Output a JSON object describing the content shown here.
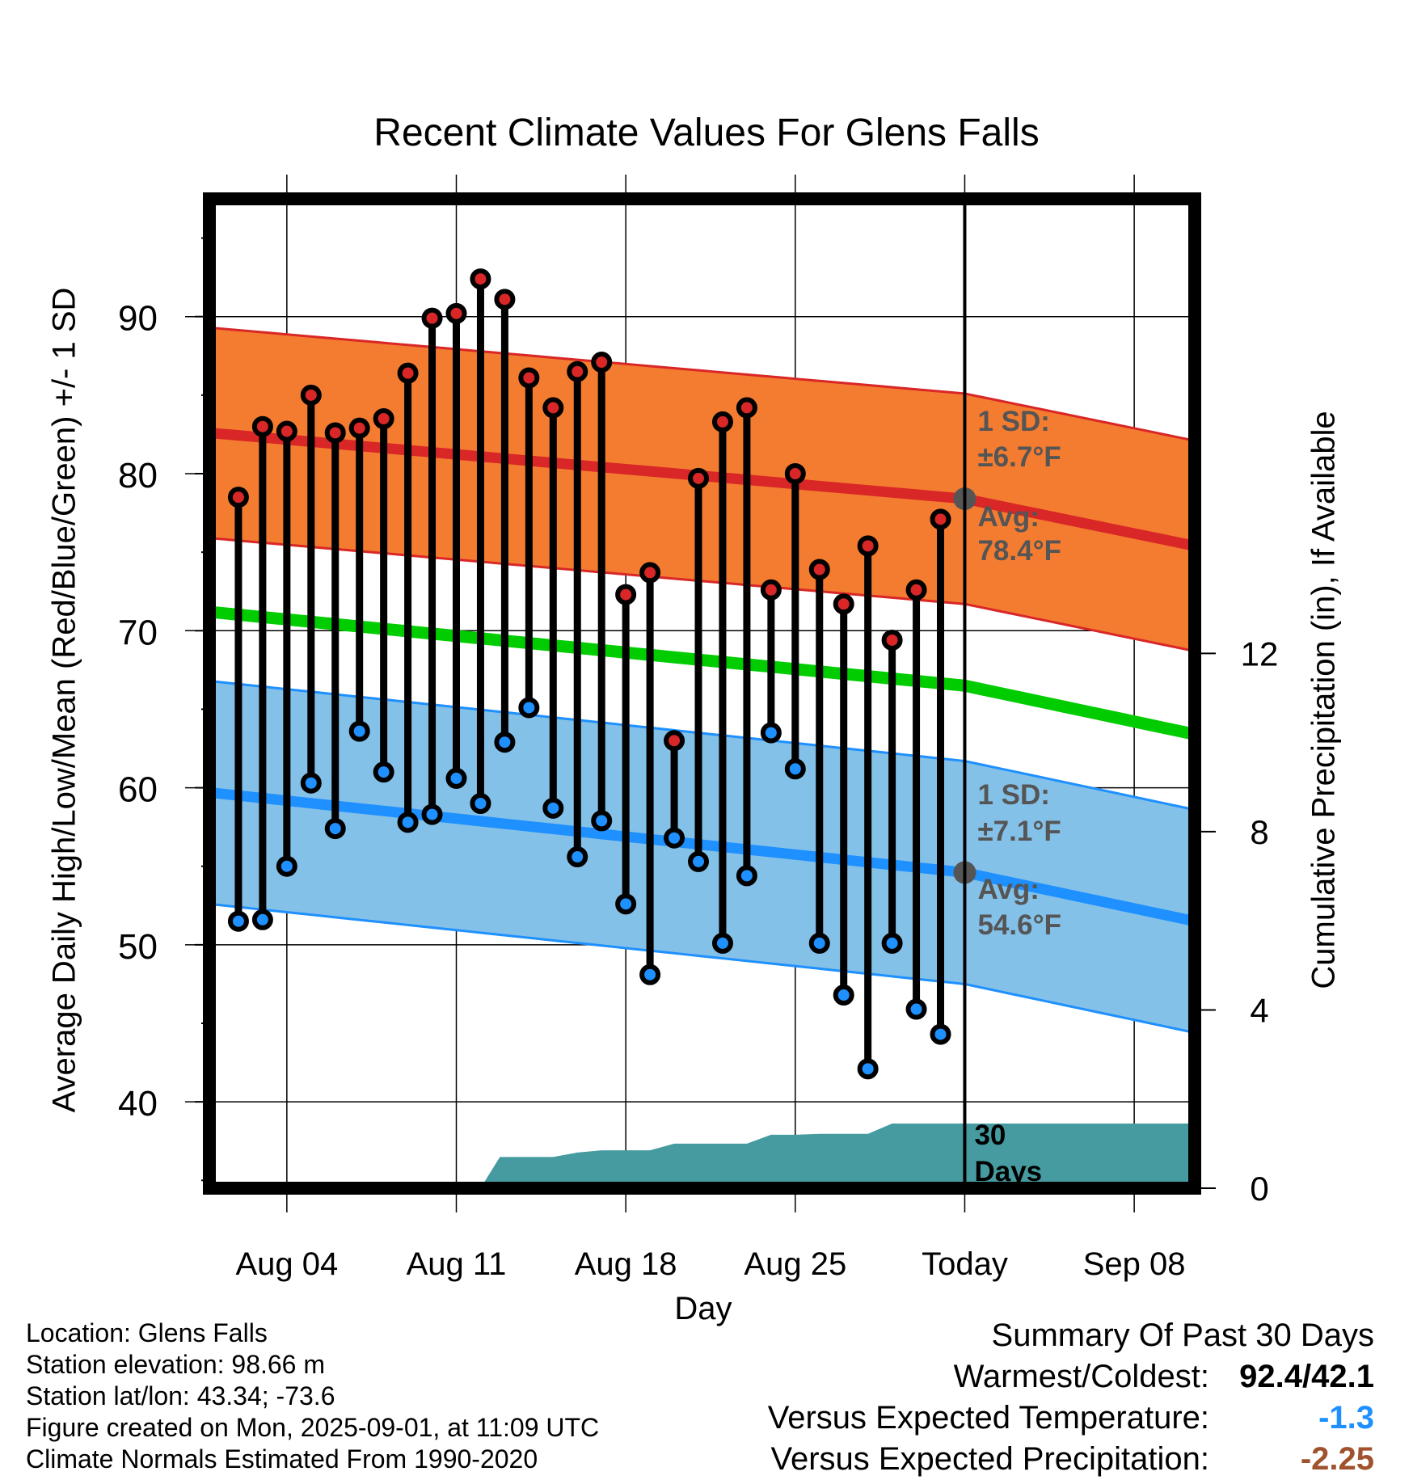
{
  "chart_data": {
    "type": "line",
    "title": "Recent Climate Values For Glens Falls",
    "xlabel": "Day",
    "ylabel": "Average Daily High/Low/Mean (Red/Blue/Green) +/- 1 SD",
    "y2label": "Cumulative Precipitation (in), If Available",
    "x_tick_labels": [
      "Aug 04",
      "Aug 11",
      "Aug 18",
      "Aug 25",
      "Today",
      "Sep 08"
    ],
    "x_tick_days": [
      4,
      11,
      18,
      25,
      32,
      39
    ],
    "y_ticks": [
      40,
      50,
      60,
      70,
      80,
      90
    ],
    "ylim": [
      34.5,
      97.5
    ],
    "y2_ticks": [
      0,
      4,
      8,
      12
    ],
    "y2lim": [
      0,
      22.2
    ],
    "xlim": [
      0.8,
      41.5
    ],
    "today_day": 32,
    "grid": true,
    "observed": {
      "days": [
        2,
        3,
        4,
        5,
        6,
        7,
        8,
        9,
        10,
        11,
        12,
        13,
        14,
        15,
        16,
        17,
        18,
        19,
        20,
        21,
        22,
        23,
        24,
        25,
        26,
        27,
        28,
        29,
        30,
        31
      ],
      "high": [
        78.5,
        83.0,
        82.7,
        85.0,
        82.6,
        82.9,
        83.5,
        86.4,
        89.9,
        90.2,
        92.4,
        91.1,
        86.1,
        84.2,
        86.5,
        87.1,
        72.3,
        73.7,
        63.0,
        79.7,
        83.3,
        84.2,
        72.6,
        80.0,
        73.9,
        71.7,
        75.4,
        69.4,
        72.6,
        77.1
      ],
      "low": [
        51.5,
        51.6,
        55.0,
        60.3,
        57.4,
        63.6,
        61.0,
        57.8,
        58.3,
        60.6,
        59.0,
        62.9,
        65.1,
        58.7,
        55.6,
        57.9,
        52.6,
        48.1,
        56.8,
        55.3,
        50.1,
        54.4,
        63.5,
        61.2,
        50.1,
        46.8,
        42.1,
        50.1,
        45.9,
        44.3
      ]
    },
    "normals": {
      "days": [
        0.8,
        32,
        41.5
      ],
      "high_avg": [
        82.6,
        78.4,
        75.4
      ],
      "high_sd": 6.7,
      "low_avg": [
        59.7,
        54.6,
        51.5
      ],
      "low_sd": 7.1,
      "mean_avg": [
        71.2,
        66.5,
        63.4
      ]
    },
    "precipitation": {
      "days": [
        12.0,
        12.8,
        14.0,
        15.0,
        16.0,
        17.0,
        18.0,
        19.0,
        20.0,
        21.0,
        22.0,
        23.0,
        24.0,
        25.0,
        26.0,
        27.0,
        28.0,
        29.0,
        30.0,
        31.0,
        32.0,
        41.5
      ],
      "cumulative_in": [
        0.0,
        0.7,
        0.7,
        0.7,
        0.8,
        0.85,
        0.85,
        0.85,
        1.0,
        1.0,
        1.0,
        1.0,
        1.2,
        1.2,
        1.22,
        1.22,
        1.22,
        1.45,
        1.45,
        1.45,
        1.45,
        1.45
      ]
    },
    "annotations": {
      "high_sd_label": "1 SD:",
      "high_sd_value": "±6.7°F",
      "high_avg_label": "Avg:",
      "high_avg_value": "78.4°F",
      "low_sd_label": "1 SD:",
      "low_sd_value": "±7.1°F",
      "low_avg_label": "Avg:",
      "low_avg_value": "54.6°F",
      "days_count": "30",
      "days_word": "Days"
    },
    "colors": {
      "high_band": "#f47c30",
      "high_line": "#d92626",
      "low_band": "#84c1e8",
      "low_line": "#1e90ff",
      "mean_line": "#00cc00",
      "precip": "#469ba0",
      "high_dot": "#d92626",
      "low_dot": "#1e90ff",
      "annotation_text": "#555555"
    }
  },
  "station": {
    "location": "Location: Glens Falls",
    "elevation": "Station elevation: 98.66 m",
    "latlon": "Station lat/lon: 43.34; -73.6",
    "created": "Figure created on Mon, 2025-09-01, at 11:09 UTC",
    "normals": "Climate Normals Estimated From 1990-2020"
  },
  "summary": {
    "header": "Summary Of Past 30 Days",
    "warm_cold_label": "Warmest/Coldest:",
    "warm_cold_value": "92.4/42.1",
    "temp_label": "Versus Expected Temperature:",
    "temp_value": "-1.3",
    "precip_label": "Versus Expected Precipitation:",
    "precip_value": "-2.25"
  }
}
